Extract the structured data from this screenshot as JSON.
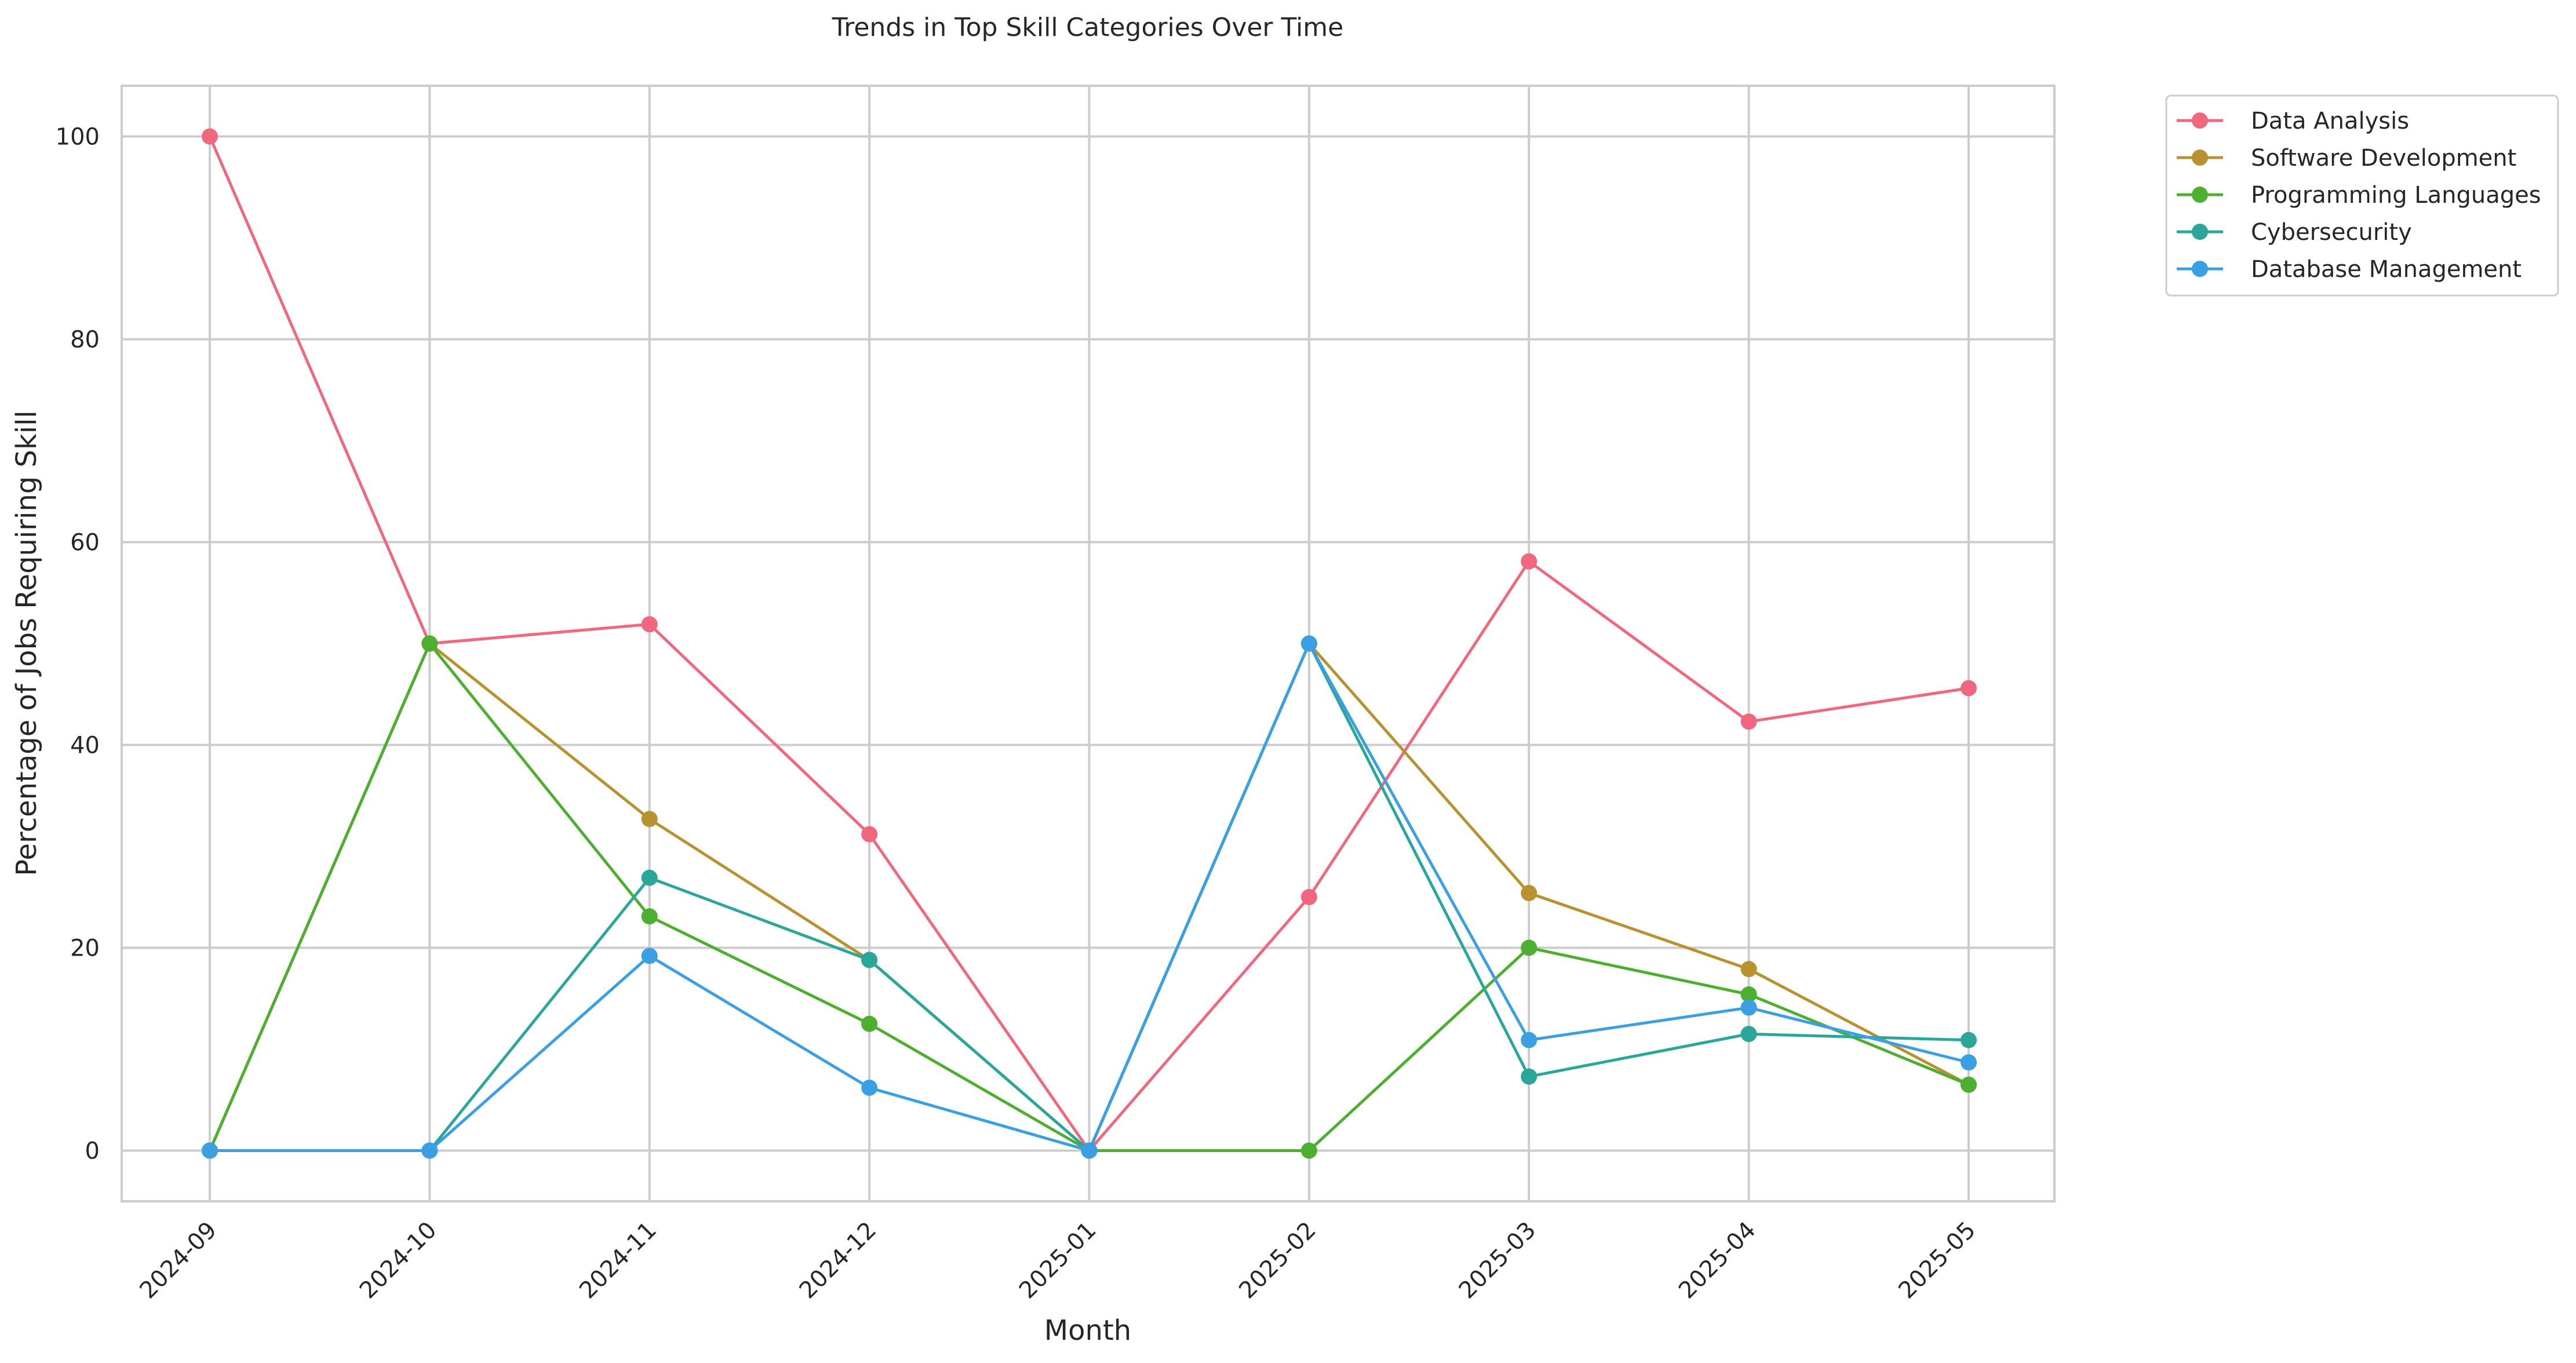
{
  "chart_data": {
    "type": "line",
    "title": "Trends in Top Skill Categories Over Time",
    "xlabel": "Month",
    "ylabel": "Percentage of Jobs Requiring Skill",
    "categories": [
      "2024-09",
      "2024-10",
      "2024-11",
      "2024-12",
      "2025-01",
      "2025-02",
      "2025-03",
      "2025-04",
      "2025-05"
    ],
    "ylim": [
      -5,
      105
    ],
    "yticks": [
      0,
      20,
      40,
      60,
      80,
      100
    ],
    "grid": true,
    "legend_position": "outside-top-right",
    "series": [
      {
        "name": "Data Analysis",
        "color": "#f0687e",
        "values": [
          100,
          50,
          51.9,
          31.2,
          0,
          25,
          58.1,
          42.3,
          45.6
        ]
      },
      {
        "name": "Software Development",
        "color": "#b89130",
        "values": [
          0,
          50,
          32.7,
          18.8,
          0,
          50,
          25.4,
          17.9,
          6.5
        ]
      },
      {
        "name": "Programming Languages",
        "color": "#4daf30",
        "values": [
          0,
          50,
          23.1,
          12.5,
          0,
          0,
          20,
          15.4,
          6.5
        ]
      },
      {
        "name": "Cybersecurity",
        "color": "#2ba79a",
        "values": [
          0,
          0,
          26.9,
          18.8,
          0,
          50,
          7.3,
          11.5,
          10.9
        ]
      },
      {
        "name": "Database Management",
        "color": "#3aa0e3",
        "values": [
          0,
          0,
          19.2,
          6.2,
          0,
          50,
          10.9,
          14.1,
          8.7
        ]
      }
    ]
  }
}
